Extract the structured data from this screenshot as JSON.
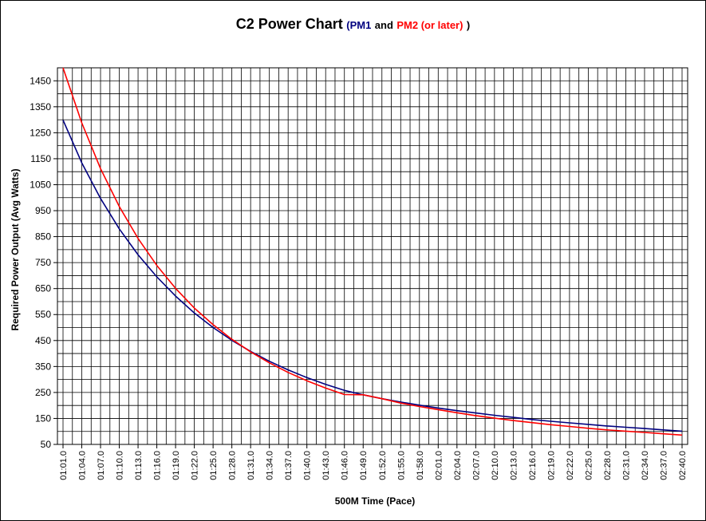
{
  "chart_data": {
    "type": "line",
    "title_parts": {
      "main": "C2 Power Chart",
      "open_paren": "(",
      "pm1": "PM1",
      "and": "and",
      "pm2": "PM2 (or later)",
      "close_paren": ")"
    },
    "xlabel": "500M Time (Pace)",
    "ylabel": "Required Power Output (Avg Watts)",
    "ylim": [
      50,
      1500
    ],
    "yticks": [
      50,
      150,
      250,
      350,
      450,
      550,
      650,
      750,
      850,
      950,
      1050,
      1150,
      1250,
      1350,
      1450
    ],
    "x_categories": [
      "01:01.0",
      "01:04.0",
      "01:07.0",
      "01:10.0",
      "01:13.0",
      "01:16.0",
      "01:19.0",
      "01:22.0",
      "01:25.0",
      "01:28.0",
      "01:31.0",
      "01:34.0",
      "01:37.0",
      "01:40.0",
      "01:43.0",
      "01:46.0",
      "01:49.0",
      "01:52.0",
      "01:55.0",
      "01:58.0",
      "02:01.0",
      "02:04.0",
      "02:07.0",
      "02:10.0",
      "02:13.0",
      "02:16.0",
      "02:19.0",
      "02:22.0",
      "02:25.0",
      "02:28.0",
      "02:31.0",
      "02:34.0",
      "02:37.0",
      "02:40.0"
    ],
    "grid": true,
    "series": [
      {
        "name": "PM1",
        "color": "#000080",
        "values": [
          1299,
          1134,
          997,
          880,
          780,
          695,
          621,
          556,
          500,
          451,
          408,
          370,
          337,
          307,
          281,
          258,
          241,
          226,
          213,
          201,
          190,
          180,
          171,
          162,
          154,
          146,
          139,
          133,
          127,
          121,
          116,
          111,
          106,
          101
        ]
      },
      {
        "name": "PM2 (or later)",
        "color": "#ff0000",
        "values": [
          1500,
          1288,
          1112,
          966,
          843,
          739,
          651,
          575,
          511,
          455,
          406,
          364,
          327,
          295,
          267,
          242,
          241,
          226,
          209,
          196,
          184,
          172,
          161,
          151,
          142,
          134,
          126,
          119,
          112,
          106,
          101,
          96,
          91,
          86
        ]
      }
    ]
  }
}
